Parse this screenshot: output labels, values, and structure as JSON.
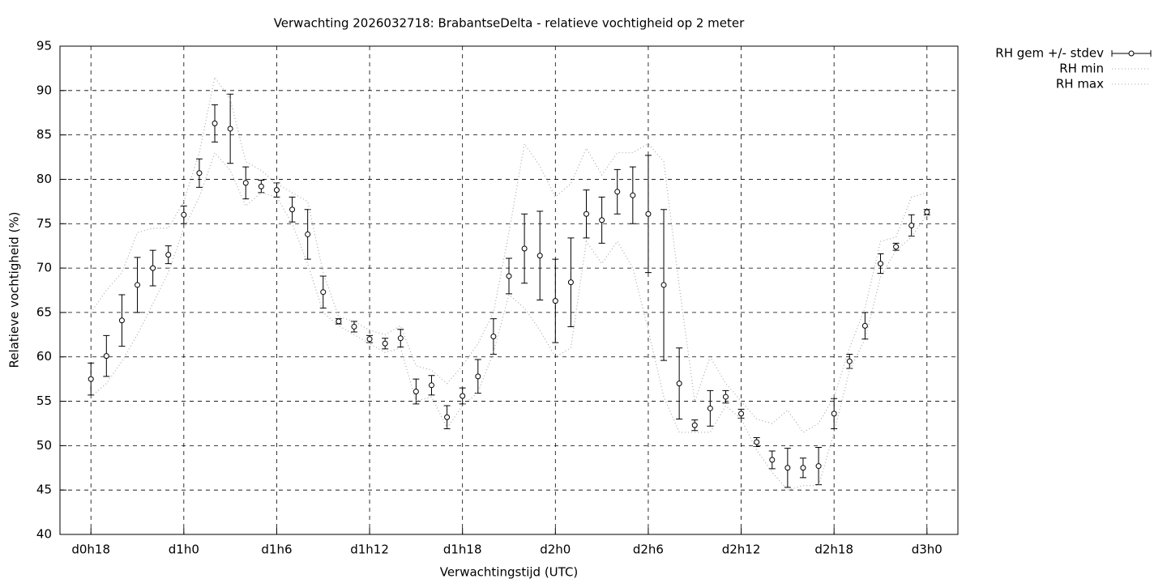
{
  "chart_data": {
    "type": "errorbar",
    "title": "Verwachting 2026032718: BrabantseDelta - relatieve vochtigheid op 2 meter",
    "xlabel": "Verwachtingstijd (UTC)",
    "ylabel": "Relatieve vochtigheid (%)",
    "x": [
      18,
      19,
      20,
      21,
      22,
      23,
      24,
      25,
      26,
      27,
      28,
      29,
      30,
      31,
      32,
      33,
      34,
      35,
      36,
      37,
      38,
      39,
      40,
      41,
      42,
      43,
      44,
      45,
      46,
      47,
      48,
      49,
      50,
      51,
      52,
      53,
      54,
      55,
      56,
      57,
      58,
      59,
      60,
      61,
      62,
      63,
      64,
      65,
      66,
      67,
      68,
      69,
      70,
      71,
      72
    ],
    "series": [
      {
        "name": "RH gem +/- stdev",
        "color": "#000000",
        "style": "errorbar",
        "values": [
          57.5,
          60.1,
          64.1,
          68.1,
          70.0,
          71.5,
          76.0,
          80.7,
          86.3,
          85.7,
          79.6,
          79.2,
          78.8,
          76.6,
          73.8,
          67.3,
          64.0,
          63.4,
          62.0,
          61.5,
          62.1,
          56.1,
          56.8,
          53.2,
          55.6,
          57.8,
          62.3,
          69.1,
          72.2,
          71.4,
          66.3,
          68.4,
          76.1,
          75.4,
          78.6,
          78.2,
          76.1,
          68.1,
          57.0,
          52.3,
          54.2,
          55.5,
          53.6,
          50.4,
          48.4,
          47.5,
          47.5,
          47.7,
          53.6,
          59.5,
          63.5,
          70.5,
          72.4,
          74.8,
          76.3
        ],
        "errors": [
          1.8,
          2.3,
          2.9,
          3.1,
          2.0,
          1.0,
          1.0,
          1.6,
          2.1,
          3.9,
          1.8,
          0.7,
          0.8,
          1.4,
          2.8,
          1.8,
          0.3,
          0.6,
          0.4,
          0.6,
          1.0,
          1.4,
          1.1,
          1.3,
          0.9,
          1.9,
          2.0,
          2.0,
          3.9,
          5.0,
          4.7,
          5.0,
          2.7,
          2.6,
          2.5,
          3.2,
          6.6,
          8.5,
          4.0,
          0.6,
          2.0,
          0.7,
          0.5,
          0.5,
          1.0,
          2.2,
          1.1,
          2.1,
          1.7,
          0.8,
          1.5,
          1.1,
          0.4,
          1.2,
          0.3
        ]
      },
      {
        "name": "RH min",
        "color": "#aaaaaa",
        "style": "dotted",
        "values": [
          55.5,
          57,
          59.5,
          62.5,
          66,
          69.5,
          74.5,
          78,
          83,
          81,
          77,
          78.5,
          78,
          75,
          70.5,
          65,
          63.5,
          62.5,
          61.5,
          60.5,
          61,
          55,
          55.5,
          52,
          54.5,
          56,
          60.5,
          67,
          65.5,
          63,
          60,
          61,
          73,
          70.5,
          73,
          70,
          63,
          55.5,
          51.5,
          51.5,
          51.5,
          54.5,
          53,
          49.5,
          47,
          45,
          45.5,
          45.5,
          51.5,
          58.5,
          62,
          69,
          72,
          73.5,
          76
        ]
      },
      {
        "name": "RH max",
        "color": "#aaaaaa",
        "style": "dotted",
        "values": [
          65,
          67.5,
          69.5,
          74,
          74.5,
          74.5,
          77.5,
          83,
          91.5,
          89,
          82,
          81,
          79.5,
          78.5,
          77.5,
          69.5,
          64.5,
          64,
          63,
          62.5,
          63.5,
          59,
          58.5,
          57,
          59,
          61.5,
          65,
          74,
          84,
          81.5,
          78,
          79.5,
          83.5,
          80.5,
          83,
          83,
          84,
          82,
          68,
          55,
          60,
          57,
          55,
          53,
          52.5,
          54,
          51.5,
          52.5,
          55.5,
          61,
          65.5,
          73,
          73.5,
          78,
          78.5
        ]
      }
    ],
    "xlim": [
      16,
      74
    ],
    "xticks": [
      {
        "value": 18,
        "label": "d0h18"
      },
      {
        "value": 24,
        "label": "d1h0"
      },
      {
        "value": 30,
        "label": "d1h6"
      },
      {
        "value": 36,
        "label": "d1h12"
      },
      {
        "value": 42,
        "label": "d1h18"
      },
      {
        "value": 48,
        "label": "d2h0"
      },
      {
        "value": 54,
        "label": "d2h6"
      },
      {
        "value": 60,
        "label": "d2h12"
      },
      {
        "value": 66,
        "label": "d2h18"
      },
      {
        "value": 72,
        "label": "d3h0"
      }
    ],
    "ylim": [
      40,
      95
    ],
    "yticks": [
      40,
      45,
      50,
      55,
      60,
      65,
      70,
      75,
      80,
      85,
      90,
      95
    ],
    "grid": true,
    "legend": "outside-top-right"
  }
}
